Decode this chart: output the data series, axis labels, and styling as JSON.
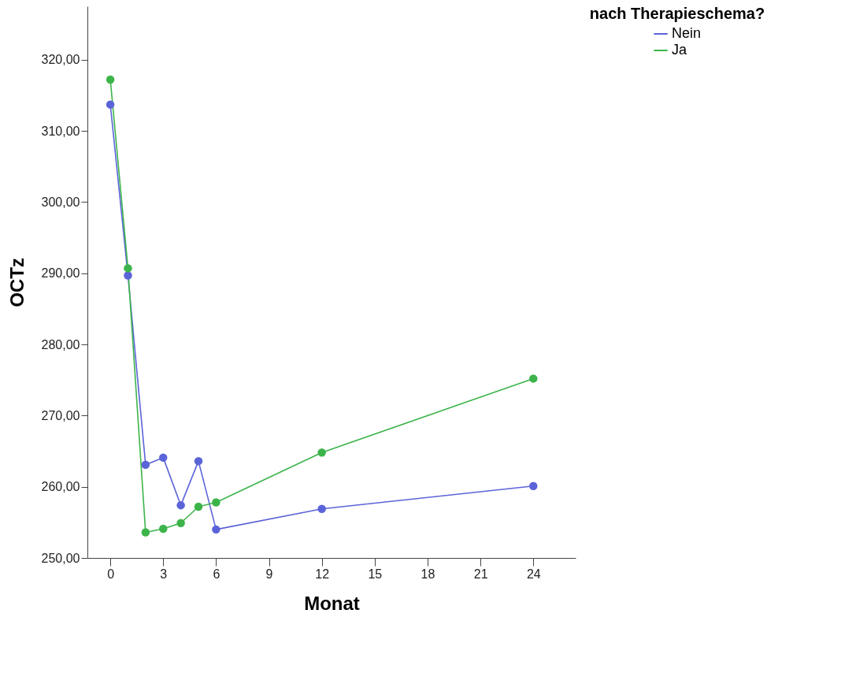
{
  "chart_data": {
    "type": "line",
    "xlabel": "Monat",
    "ylabel": "OCTz",
    "legend_title": "nach Therapieschema?",
    "x": [
      0,
      1,
      2,
      3,
      4,
      5,
      6,
      12,
      24
    ],
    "series": [
      {
        "name": "Nein",
        "color": "#5b63d9",
        "values": [
          313.7,
          289.7,
          263.1,
          264.1,
          257.4,
          263.6,
          254.0,
          256.9,
          260.1
        ]
      },
      {
        "name": "Ja",
        "color": "#3cb44a",
        "values": [
          317.2,
          290.7,
          253.6,
          254.1,
          254.9,
          257.2,
          257.8,
          264.8,
          275.2
        ]
      }
    ],
    "xlim": [
      -1.3,
      26.4
    ],
    "ylim": [
      250,
      327.5
    ],
    "xticks": [
      0,
      3,
      6,
      9,
      12,
      15,
      18,
      21,
      24
    ],
    "yticks": [
      {
        "value": 250,
        "label": "250,00"
      },
      {
        "value": 260,
        "label": "260,00"
      },
      {
        "value": 270,
        "label": "270,00"
      },
      {
        "value": 280,
        "label": "280,00"
      },
      {
        "value": 290,
        "label": "290,00"
      },
      {
        "value": 300,
        "label": "300,00"
      },
      {
        "value": 310,
        "label": "310,00"
      },
      {
        "value": 320,
        "label": "320,00"
      }
    ],
    "grid": false,
    "legend": "top right",
    "marker": "circle",
    "line_style": "solid"
  }
}
